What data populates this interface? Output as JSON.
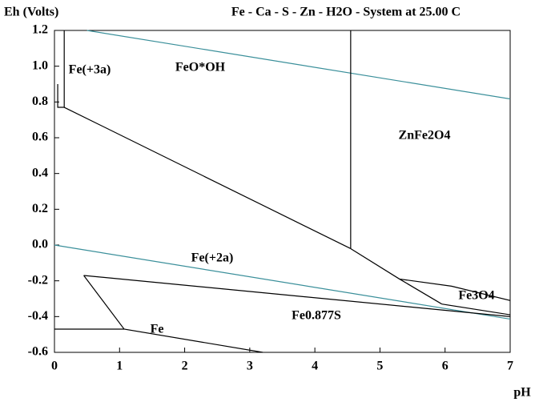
{
  "chart_data": {
    "type": "line",
    "title": "Fe - Ca - S - Zn - H2O - System at 25.00 C",
    "y_label": "Eh (Volts)",
    "x_label": "pH",
    "xlim": [
      0,
      7
    ],
    "xticks": [
      0,
      1,
      2,
      3,
      4,
      5,
      6,
      7
    ],
    "ylim": [
      -0.6,
      1.2
    ],
    "yticks": [
      -0.6,
      -0.4,
      -0.2,
      {
        "value": 0,
        "label": "0.0"
      },
      0.2,
      0.4,
      0.6,
      0.8,
      {
        "value": 1,
        "label": "1.0"
      },
      1.2
    ],
    "series": [
      {
        "color": "#3a8f9a",
        "x": [
          0.5,
          7
        ],
        "values": [
          1.2,
          0.817
        ]
      },
      {
        "color": "#3a8f9a",
        "x": [
          0,
          7
        ],
        "values": [
          0,
          -0.414
        ]
      },
      {
        "color": "#000000",
        "x": [
          0.05,
          0.05,
          0.15,
          0.15
        ],
        "values": [
          0.9,
          0.77,
          0.77,
          1.2
        ]
      },
      {
        "color": "#000000",
        "x": [
          0.15,
          4.55
        ],
        "values": [
          0.77,
          -0.02
        ]
      },
      {
        "color": "#000000",
        "x": [
          4.55,
          4.55
        ],
        "values": [
          -0.02,
          1.2
        ]
      },
      {
        "color": "#000000",
        "x": [
          4.55,
          5.3,
          5.95
        ],
        "values": [
          -0.02,
          -0.19,
          -0.33
        ]
      },
      {
        "color": "#000000",
        "x": [
          5.3,
          6.1,
          7
        ],
        "values": [
          -0.19,
          -0.23,
          -0.31
        ]
      },
      {
        "color": "#000000",
        "x": [
          5.95,
          7
        ],
        "values": [
          -0.33,
          -0.39
        ]
      },
      {
        "color": "#000000",
        "x": [
          0.45,
          7
        ],
        "values": [
          -0.17,
          -0.4
        ]
      },
      {
        "color": "#000000",
        "x": [
          0.45,
          1.07,
          3.2
        ],
        "values": [
          -0.17,
          -0.47,
          -0.6
        ]
      },
      {
        "color": "#000000",
        "x": [
          0,
          1.07
        ],
        "values": [
          -0.47,
          -0.47
        ]
      }
    ],
    "annotations": [
      "Fe(+3a)",
      "FeO*OH",
      "ZnFe2O4",
      "Fe(+2a)",
      "Fe3O4",
      "Fe0.877S",
      "Fe"
    ]
  }
}
